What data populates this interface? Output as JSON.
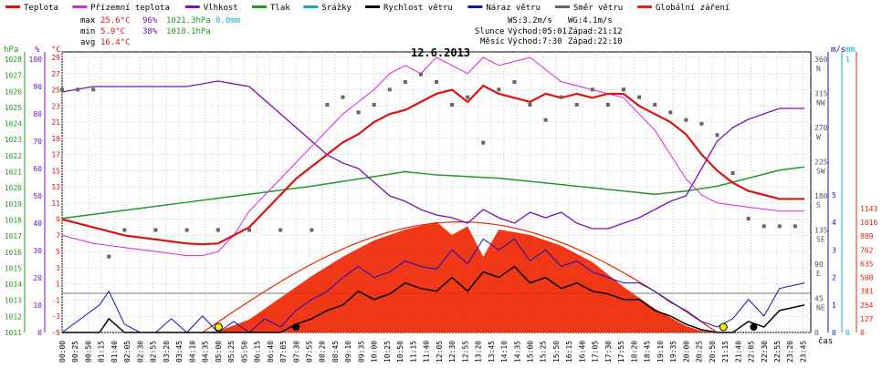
{
  "legend": [
    {
      "label": "Teplota",
      "color": "#dd1111"
    },
    {
      "label": "Přízemní teplota",
      "color": "#dd22dd"
    },
    {
      "label": "Vlhkost",
      "color": "#7711bb"
    },
    {
      "label": "Tlak",
      "color": "#229922"
    },
    {
      "label": "Srážky",
      "color": "#11aacc"
    },
    {
      "label": "Rychlost větru",
      "color": "#000000"
    },
    {
      "label": "Náraz větru",
      "color": "#1111bb"
    },
    {
      "label": "Směr větru",
      "color": "#666666"
    },
    {
      "label": "Globální záření",
      "color": "#ee2200"
    }
  ],
  "stats": {
    "max_label": "max",
    "max_temp": "25.6°C",
    "max_hum": "96%",
    "max_press": "1021.3hPa",
    "rain": "0.0mm",
    "min_label": "min",
    "min_temp": "5.9°C",
    "min_hum": "38%",
    "min_press": "1018.1hPa",
    "avg_label": "avg",
    "avg_temp": "16.4°C",
    "ws": "WS:3.2m/s",
    "wg": "WG:4.1m/s",
    "sun_label": "Slunce",
    "sun_rise": "Východ:05:01",
    "sun_set": "Západ:21:12",
    "moon_label": "Měsíc",
    "moon_rise": "Východ:7:30",
    "moon_set": "Západ:22:10"
  },
  "title": "12.6.2013",
  "axis_units": {
    "hpa": "hPa",
    "pct": "%",
    "degc": "°C",
    "ms": "m/s",
    "mm": "mm",
    "time": "čas"
  },
  "colors": {
    "temp": "#dd1111",
    "ground": "#dd22dd",
    "humidity": "#7711bb",
    "pressure": "#229922",
    "rain": "#11aacc",
    "wind": "#000000",
    "gust": "#1111bb",
    "direction": "#666666",
    "radiation": "#ee2200"
  },
  "chart_data": {
    "type": "line",
    "title": "12.6.2013",
    "x_labels": [
      "00:00",
      "00:25",
      "00:50",
      "01:15",
      "01:40",
      "02:05",
      "02:30",
      "02:55",
      "03:20",
      "03:45",
      "04:10",
      "04:35",
      "05:00",
      "05:25",
      "05:50",
      "06:15",
      "06:40",
      "07:05",
      "07:30",
      "07:55",
      "08:20",
      "08:45",
      "09:10",
      "09:35",
      "10:00",
      "10:25",
      "10:50",
      "11:15",
      "11:40",
      "12:05",
      "12:30",
      "12:55",
      "13:20",
      "13:45",
      "14:10",
      "14:35",
      "15:00",
      "15:25",
      "15:50",
      "16:15",
      "16:40",
      "17:05",
      "17:30",
      "17:55",
      "18:20",
      "18:45",
      "19:10",
      "19:35",
      "20:00",
      "20:25",
      "20:50",
      "21:15",
      "21:40",
      "22:05",
      "22:30",
      "22:55",
      "23:20",
      "23:45"
    ],
    "axes": {
      "pressure_hpa": {
        "ticks": [
          "1028",
          "1027",
          "1026",
          "1025",
          "1024",
          "1023",
          "1022",
          "1021",
          "1020",
          "1019",
          "1018",
          "1017",
          "1016",
          "1015",
          "1014",
          "1013",
          "1012",
          "1011"
        ]
      },
      "humidity_pct": {
        "ticks": [
          "100",
          "90",
          "80",
          "70",
          "60",
          "50",
          "40",
          "30",
          "20",
          "10",
          "0"
        ]
      },
      "temperature_c": {
        "ticks": [
          "29",
          "27",
          "25",
          "23",
          "21",
          "19",
          "17",
          "15",
          "13",
          "11",
          "9",
          "7",
          "5",
          "3",
          "1",
          "-1",
          "-3",
          "-5"
        ]
      },
      "direction": {
        "ticks": [
          "360 N",
          "315 NW",
          "270 W",
          "225 SW",
          "180 S",
          "135 SE",
          "90 E",
          "45 NE",
          "0"
        ]
      },
      "wind_ms": {
        "ticks": [
          "5",
          "4",
          "3",
          "2",
          "1",
          "0"
        ]
      },
      "rain_mm": {
        "ticks": [
          "1",
          "0"
        ]
      },
      "radiation_wm2": {
        "ticks": [
          "1143",
          "1016",
          "889",
          "762",
          "635",
          "508",
          "381",
          "254",
          "127",
          "0"
        ]
      }
    },
    "series": [
      {
        "name": "Teplota",
        "hours": [
          0,
          1,
          2,
          3,
          4,
          4.5,
          5,
          5.5,
          6,
          6.5,
          7,
          7.5,
          8,
          8.5,
          9,
          9.5,
          10,
          10.5,
          11,
          11.5,
          12,
          12.5,
          13,
          13.5,
          14,
          14.5,
          15,
          15.5,
          16,
          16.5,
          17,
          17.5,
          18,
          18.5,
          19,
          19.5,
          20,
          20.5,
          21,
          21.5,
          22,
          22.5,
          23,
          23.8
        ],
        "values": [
          9,
          8,
          7,
          6.5,
          6,
          5.9,
          6,
          7,
          8,
          10,
          12,
          14,
          15.5,
          17,
          18.5,
          19.5,
          21,
          22,
          22.5,
          23.5,
          24.5,
          25,
          23.5,
          25.5,
          24.5,
          24,
          23.5,
          24.5,
          24,
          24.5,
          24,
          24.5,
          24.5,
          23,
          22,
          21,
          19.5,
          17,
          15,
          13.5,
          12.5,
          12,
          11.5,
          11.5
        ]
      },
      {
        "name": "Přízemní teplota",
        "hours": [
          0,
          1,
          2,
          3,
          4,
          4.5,
          5,
          5.5,
          6,
          7,
          8,
          9,
          10,
          10.5,
          11,
          11.5,
          12,
          12.5,
          13,
          13.5,
          14,
          15,
          16,
          17,
          18,
          18.5,
          19,
          19.5,
          20,
          20.5,
          21,
          22,
          23,
          23.8
        ],
        "values": [
          7,
          6,
          5.5,
          5,
          4.5,
          4.5,
          5,
          7,
          10,
          14,
          18,
          22,
          25,
          27,
          28,
          27,
          29,
          28,
          27,
          29,
          28,
          29,
          26,
          25,
          24,
          22,
          20,
          17,
          14,
          12,
          11,
          10.5,
          10,
          10
        ]
      },
      {
        "name": "Vlhkost",
        "hours": [
          0,
          1,
          2,
          3,
          4,
          5,
          6,
          6.5,
          7,
          7.5,
          8,
          8.5,
          9,
          9.5,
          10,
          10.5,
          11,
          11.5,
          12,
          12.5,
          13,
          13.5,
          14,
          14.5,
          15,
          15.5,
          16,
          16.5,
          17,
          17.5,
          18,
          18.5,
          19,
          19.5,
          20,
          20.5,
          21,
          21.5,
          22,
          22.5,
          23,
          23.8
        ],
        "values": [
          88,
          90,
          90,
          90,
          90,
          92,
          90,
          85,
          80,
          75,
          70,
          65,
          62,
          60,
          55,
          50,
          48,
          45,
          43,
          42,
          40,
          45,
          42,
          40,
          44,
          42,
          44,
          40,
          38,
          38,
          40,
          42,
          45,
          48,
          50,
          60,
          70,
          75,
          78,
          80,
          82,
          82
        ]
      },
      {
        "name": "Tlak",
        "hours": [
          0,
          2,
          4,
          6,
          8,
          9,
          10,
          11,
          12,
          13,
          14,
          15,
          16,
          17,
          18,
          19,
          20,
          21,
          22,
          23,
          23.8
        ],
        "values": [
          1018.1,
          1018.6,
          1019.1,
          1019.6,
          1020.1,
          1020.4,
          1020.7,
          1021.0,
          1020.8,
          1020.7,
          1020.6,
          1020.4,
          1020.2,
          1020.0,
          1019.8,
          1019.6,
          1019.8,
          1020.1,
          1020.6,
          1021.1,
          1021.3
        ]
      },
      {
        "name": "Globální záření",
        "hours": [
          4.5,
          5,
          6,
          7,
          8,
          9,
          10,
          11,
          12,
          12.5,
          13,
          13.5,
          14,
          15,
          16,
          17,
          18,
          19,
          20,
          20.5,
          21
        ],
        "values": [
          0,
          10,
          120,
          320,
          520,
          700,
          850,
          950,
          1020,
          900,
          980,
          700,
          950,
          900,
          800,
          650,
          420,
          220,
          60,
          15,
          0
        ]
      },
      {
        "name": "Rychlost větru",
        "hours": [
          0,
          1.2,
          1.5,
          2,
          2.5,
          3,
          3.5,
          4,
          4.5,
          5,
          5.5,
          6,
          6.5,
          7,
          7.5,
          8,
          8.5,
          9,
          9.5,
          10,
          10.5,
          11,
          11.5,
          12,
          12.5,
          13,
          13.5,
          14,
          14.5,
          15,
          15.5,
          16,
          16.5,
          17,
          17.5,
          18,
          18.5,
          19,
          19.5,
          20,
          20.5,
          21,
          21.5,
          22,
          22.5,
          23,
          23.8
        ],
        "values": [
          0,
          0,
          0.5,
          0,
          0,
          0,
          0,
          0,
          0,
          0,
          0,
          0,
          0,
          0,
          0.3,
          0.5,
          0.8,
          1,
          1.5,
          1.2,
          1.4,
          1.8,
          1.6,
          1.5,
          2,
          1.5,
          2.2,
          2,
          2.4,
          1.8,
          2,
          1.6,
          1.8,
          1.5,
          1.4,
          1.2,
          1.2,
          0.8,
          0.6,
          0.3,
          0.1,
          0,
          0,
          0.4,
          0.2,
          0.8,
          1
        ]
      },
      {
        "name": "Náraz větru",
        "hours": [
          0,
          1.2,
          1.5,
          2,
          2.5,
          3,
          3.5,
          4,
          4.5,
          5,
          5.5,
          6,
          6.5,
          7,
          7.5,
          8,
          8.5,
          9,
          9.5,
          10,
          10.5,
          11,
          11.5,
          12,
          12.5,
          13,
          13.5,
          14,
          14.5,
          15,
          15.5,
          16,
          16.5,
          17,
          17.5,
          18,
          18.5,
          19,
          19.5,
          20,
          20.5,
          21,
          21.5,
          22,
          22.5,
          23,
          23.8
        ],
        "values": [
          0,
          1,
          1.5,
          0.3,
          0,
          0,
          0.5,
          0,
          0.6,
          0,
          0.4,
          0,
          0.5,
          0.2,
          0.8,
          1.2,
          1.5,
          2,
          2.4,
          2,
          2.2,
          2.6,
          2.4,
          2.3,
          3,
          2.5,
          3.4,
          3,
          3.4,
          2.6,
          3,
          2.4,
          2.6,
          2.2,
          2,
          1.8,
          1.8,
          1.5,
          1.1,
          0.8,
          0.4,
          0.2,
          0.5,
          1.2,
          0.6,
          1.6,
          1.8
        ]
      },
      {
        "name": "Směr větru",
        "hours": [
          0,
          0.5,
          1,
          1.5,
          2,
          3,
          4,
          5,
          6,
          7,
          8,
          8.5,
          9,
          9.5,
          10,
          10.5,
          11,
          11.5,
          12,
          12.5,
          13,
          13.5,
          14,
          14.5,
          15,
          15.5,
          16,
          16.5,
          17,
          17.5,
          18,
          18.5,
          19,
          19.5,
          20,
          20.5,
          21,
          21.5,
          22,
          22.5,
          23,
          23.5
        ],
        "values": [
          320,
          320,
          320,
          100,
          135,
          135,
          135,
          135,
          135,
          135,
          135,
          300,
          310,
          290,
          300,
          320,
          330,
          340,
          330,
          300,
          310,
          250,
          320,
          330,
          300,
          280,
          310,
          300,
          320,
          300,
          320,
          310,
          300,
          290,
          280,
          275,
          260,
          210,
          150,
          140,
          140,
          140
        ]
      }
    ]
  }
}
